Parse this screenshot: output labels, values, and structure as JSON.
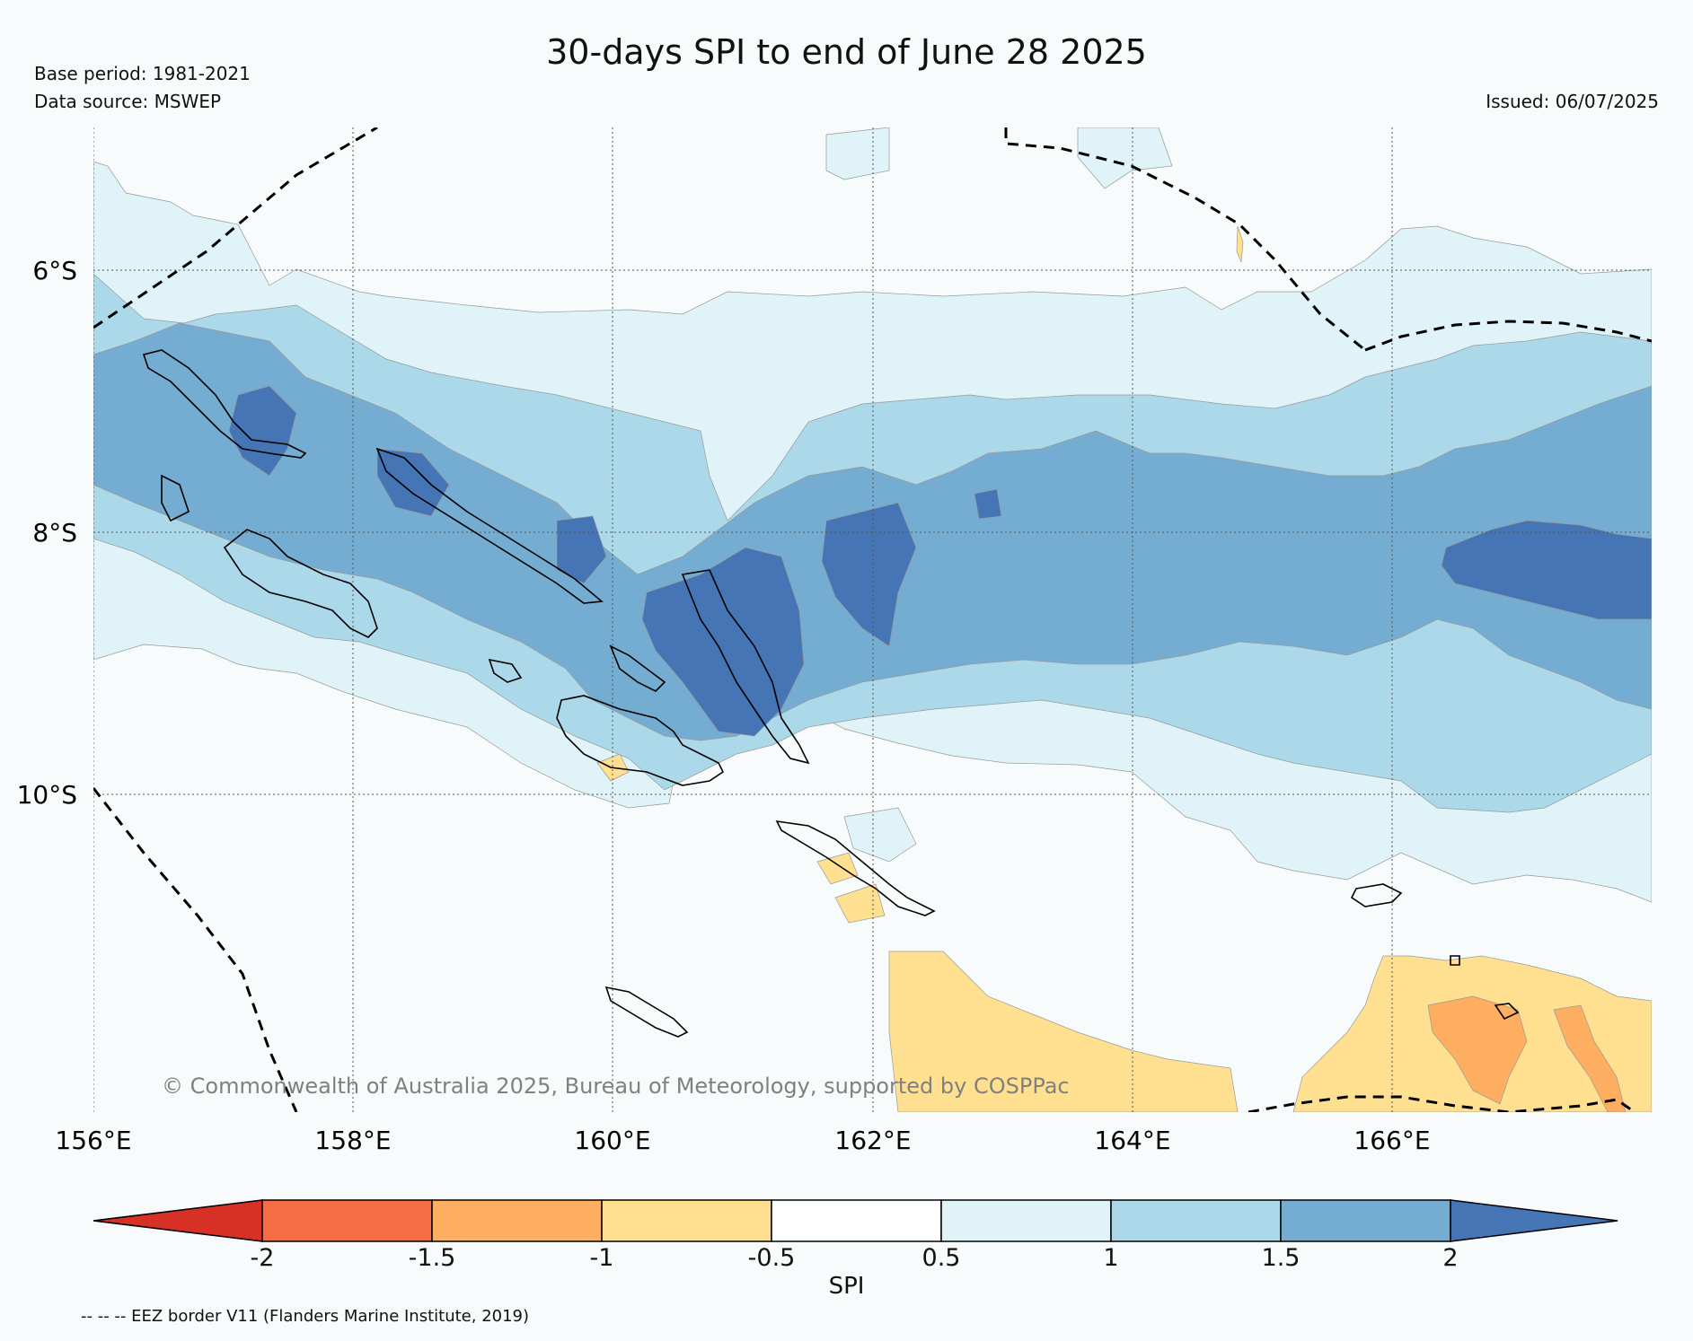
{
  "title": "30-days SPI to end of June 28 2025",
  "base_period": "Base period: 1981-2021",
  "data_source": "Data source: MSWEP",
  "issued": "Issued: 06/07/2025",
  "copyright": "© Commonwealth of Australia 2025, Bureau of Meteorology, supported by COSPPac",
  "footnote": "-- -- -- EEZ border V11 (Flanders Marine Institute, 2019)",
  "lat_labels": [
    "6°S",
    "8°S",
    "10°S"
  ],
  "lon_labels": [
    "156°E",
    "158°E",
    "160°E",
    "162°E",
    "164°E",
    "166°E"
  ],
  "colorbar": {
    "label": "SPI",
    "ticks": [
      "-2",
      "-1.5",
      "-1",
      "-0.5",
      "0.5",
      "1",
      "1.5",
      "2"
    ],
    "colors": [
      "#d73027",
      "#f46d43",
      "#fdae61",
      "#fee090",
      "#ffffff",
      "#e0f3f8",
      "#abd9e9",
      "#74add1",
      "#4575b4"
    ]
  },
  "colors": {
    "background": "#f7fbfc",
    "spi_0_5_1": "#e0f3f8",
    "spi_1_1_5": "#abd9e9",
    "spi_1_5_2": "#74add1",
    "spi_gt_2": "#4575b4",
    "spi_m0_5_m1": "#fee090",
    "spi_m1_m1_5": "#fdae61"
  }
}
